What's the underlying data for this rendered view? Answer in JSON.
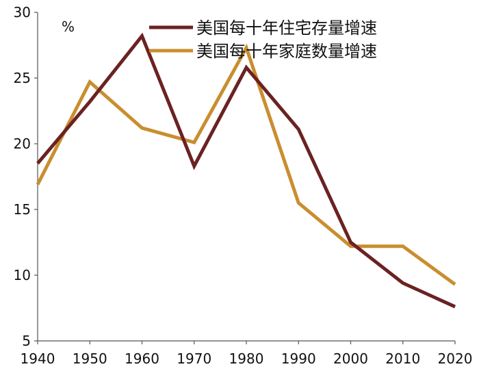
{
  "chart_data": {
    "type": "line",
    "title": "",
    "unit_label": "%",
    "xlabel": "",
    "ylabel": "",
    "x": [
      1940,
      1950,
      1960,
      1970,
      1980,
      1990,
      2000,
      2010,
      2020
    ],
    "x_tick_labels": [
      "1940",
      "1950",
      "1960",
      "1970",
      "1980",
      "1990",
      "2000",
      "2010",
      "2020"
    ],
    "ylim": [
      5,
      30
    ],
    "y_ticks": [
      5,
      10,
      15,
      20,
      25,
      30
    ],
    "y_tick_labels": [
      "5",
      "10",
      "15",
      "20",
      "25",
      "30"
    ],
    "grid": false,
    "legend_position": "top-right",
    "series": [
      {
        "name": "美国每十年住宅存量增速",
        "color": "#6b2222",
        "values": [
          18.5,
          23.2,
          28.2,
          18.3,
          25.8,
          21.1,
          12.5,
          9.4,
          7.6
        ]
      },
      {
        "name": "美国每十年家庭数量增速",
        "color": "#c98e2f",
        "values": [
          16.9,
          24.7,
          21.2,
          20.1,
          27.3,
          15.5,
          12.2,
          12.2,
          9.3
        ]
      }
    ]
  }
}
